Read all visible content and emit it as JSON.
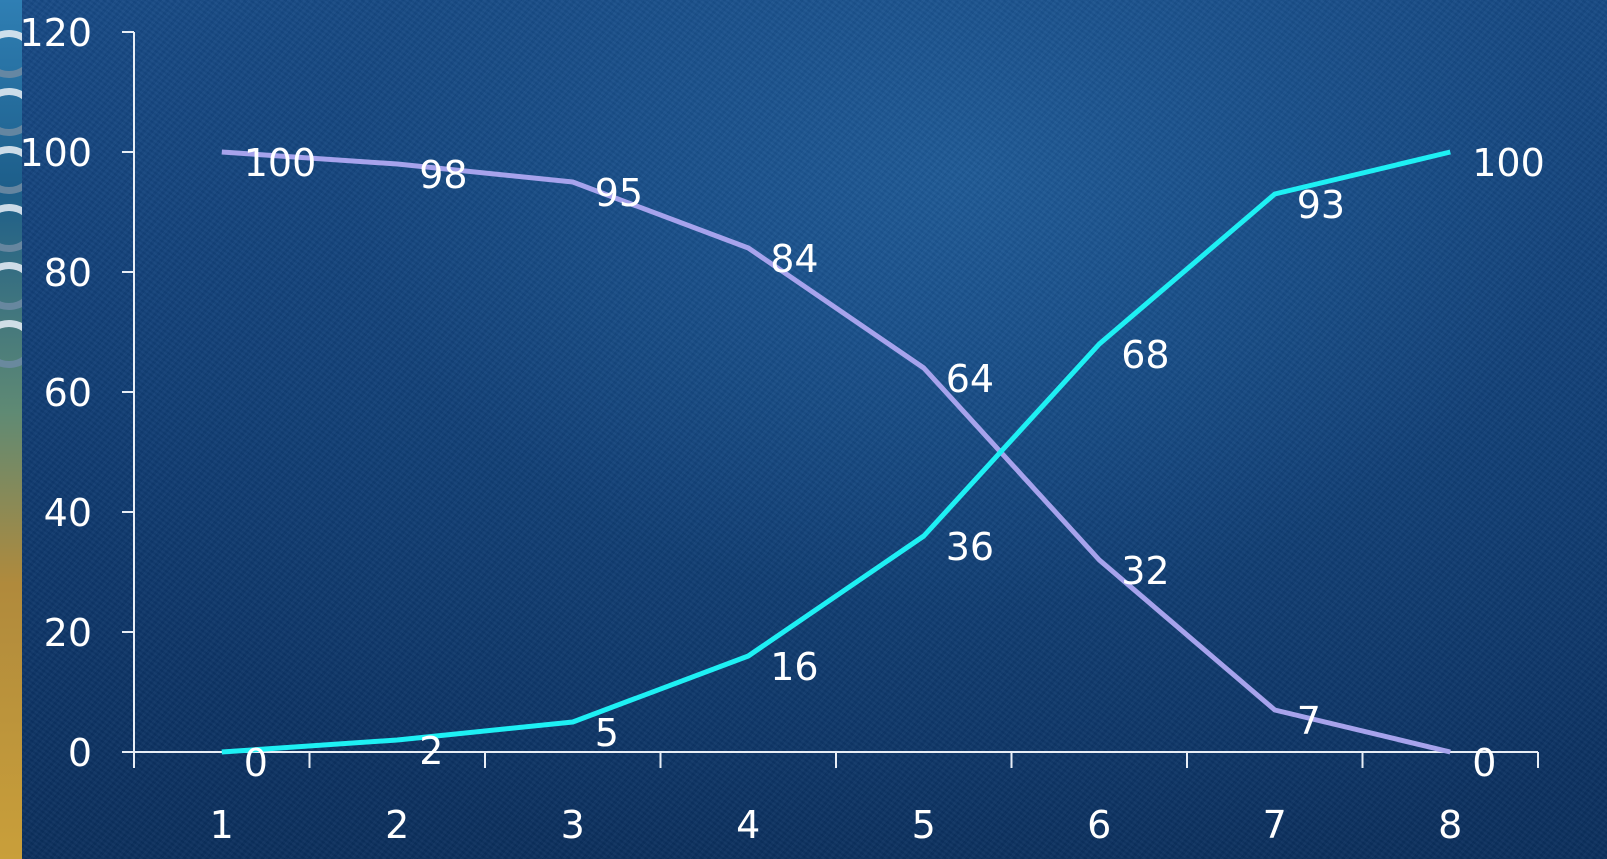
{
  "chart_data": {
    "type": "line",
    "x": [
      1,
      2,
      3,
      4,
      5,
      6,
      7,
      8
    ],
    "categories": [
      "1",
      "2",
      "3",
      "4",
      "5",
      "6",
      "7",
      "8"
    ],
    "ylim": [
      0,
      120
    ],
    "yticks": [
      "0",
      "20",
      "40",
      "60",
      "80",
      "100",
      "120"
    ],
    "grid": false,
    "series": [
      {
        "values": [
          100,
          98,
          95,
          84,
          64,
          32,
          7,
          0
        ],
        "color": "#a7a3ec"
      },
      {
        "values": [
          0,
          2,
          5,
          16,
          36,
          68,
          93,
          100
        ],
        "color": "#1ef0f4"
      }
    ],
    "axis_color": "#e8eef6"
  }
}
